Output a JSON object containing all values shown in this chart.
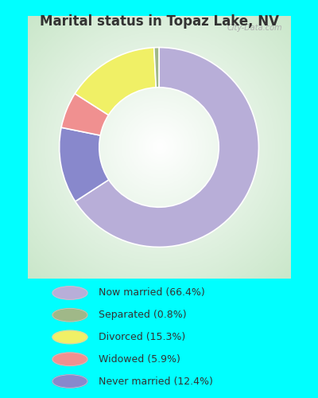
{
  "title": "Marital status in Topaz Lake, NV",
  "title_fontsize": 12,
  "bg_color": "#00ffff",
  "chart_bg_color": "#f0f8f0",
  "categories_ordered": [
    "Now married",
    "Never married",
    "Widowed",
    "Divorced",
    "Separated"
  ],
  "values_ordered": [
    66.4,
    12.4,
    5.9,
    15.3,
    0.8
  ],
  "colors_ordered": [
    "#b8aed8",
    "#8888cc",
    "#f09090",
    "#f0f066",
    "#a0b888"
  ],
  "legend_labels": [
    "Now married (66.4%)",
    "Separated (0.8%)",
    "Divorced (15.3%)",
    "Widowed (5.9%)",
    "Never married (12.4%)"
  ],
  "legend_colors": [
    "#b8aed8",
    "#a0b888",
    "#f0f066",
    "#f09090",
    "#8888cc"
  ],
  "donut_width": 0.38,
  "startangle": 90,
  "watermark": "City-Data.com"
}
